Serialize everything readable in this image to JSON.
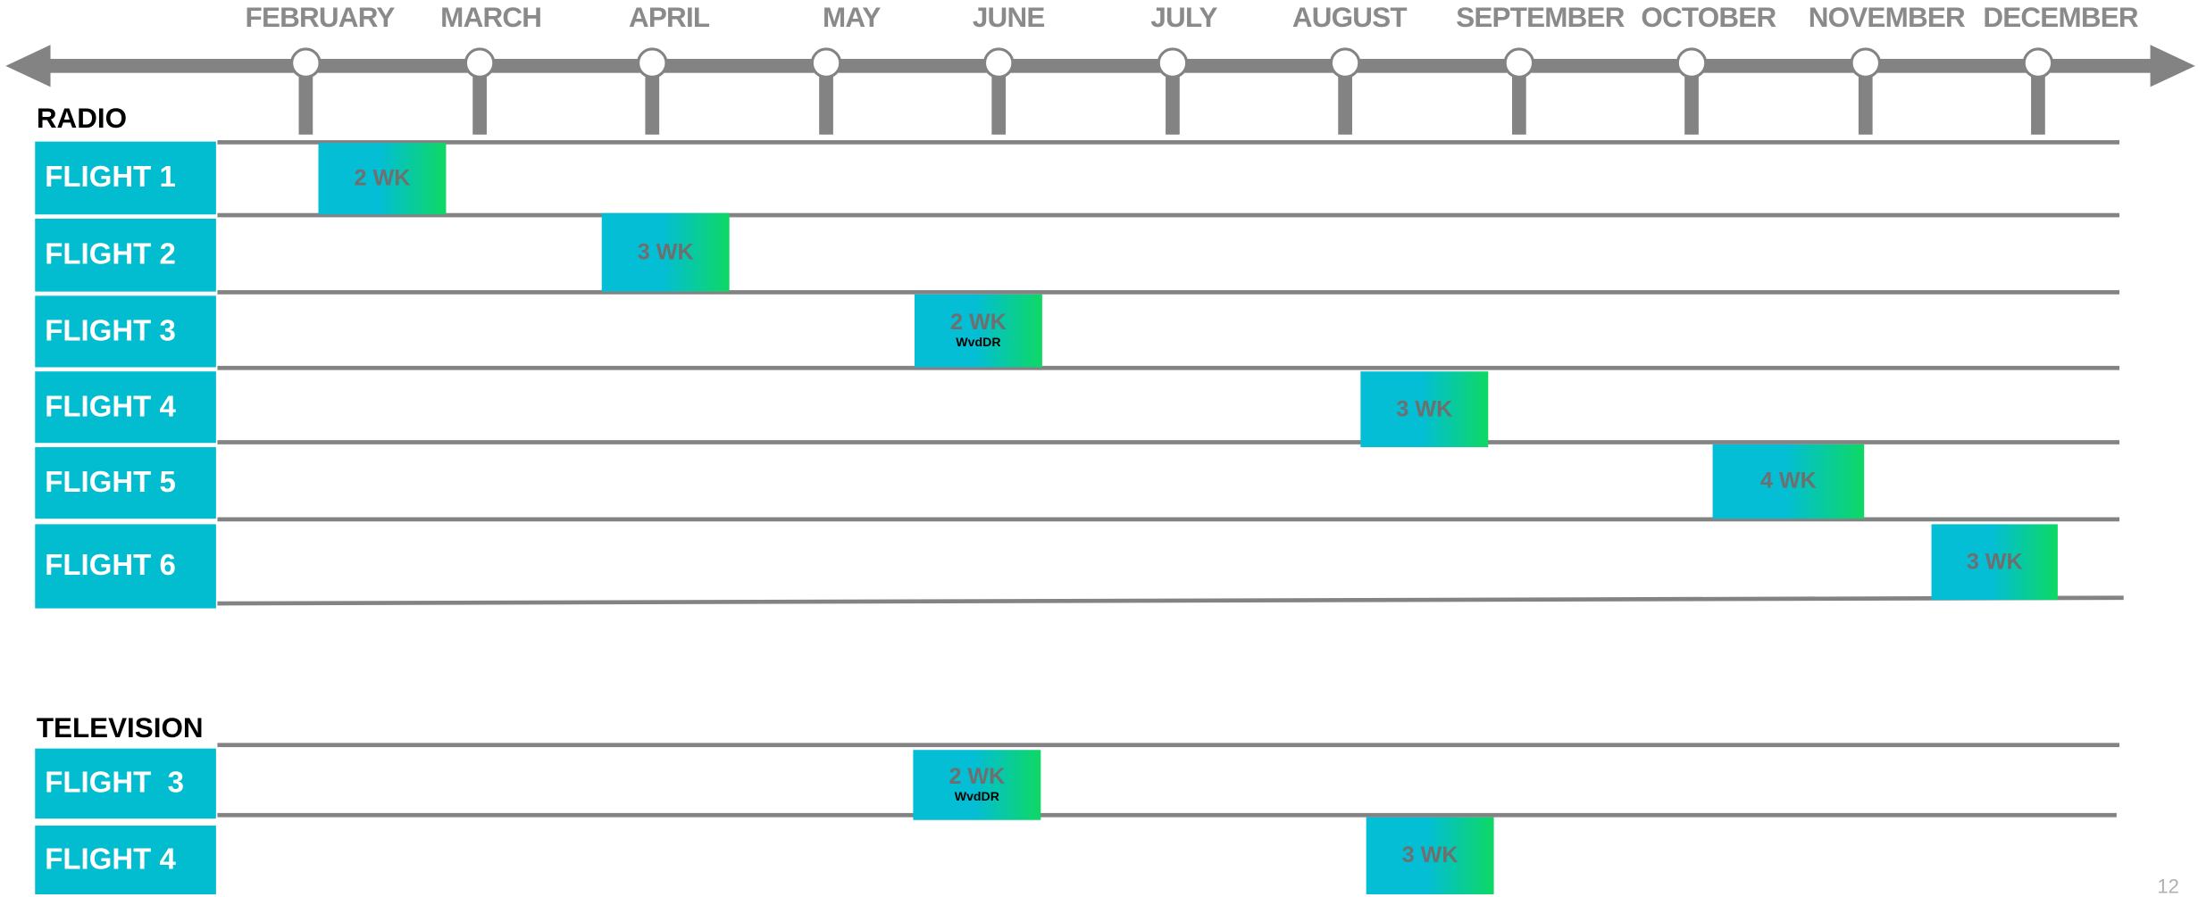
{
  "timeline": {
    "months": [
      "FEBRUARY",
      "MARCH",
      "APRIL",
      "MAY",
      "JUNE",
      "JULY",
      "AUGUST",
      "SEPTEMBER",
      "OCTOBER",
      "NOVEMBER",
      "DECEMBER"
    ]
  },
  "radio": {
    "title": "RADIO",
    "rows": [
      {
        "label": "FLIGHT 1",
        "duration": "2 WK",
        "note": ""
      },
      {
        "label": "FLIGHT 2",
        "duration": "3 WK",
        "note": ""
      },
      {
        "label": "FLIGHT 3",
        "duration": "2 WK",
        "note": "WvdDR"
      },
      {
        "label": "FLIGHT 4",
        "duration": "3 WK",
        "note": ""
      },
      {
        "label": "FLIGHT 5",
        "duration": "4 WK",
        "note": ""
      },
      {
        "label": "FLIGHT 6",
        "duration": "3 WK",
        "note": ""
      }
    ]
  },
  "television": {
    "title": "TELEVISION",
    "rows": [
      {
        "label": "FLIGHT  3",
        "duration": "2 WK",
        "note": "WvdDR"
      },
      {
        "label": "FLIGHT 4",
        "duration": "3 WK",
        "note": ""
      }
    ]
  },
  "page_number": "12",
  "colors": {
    "label_bg": "#02bcd0",
    "flight_start": "#03bed4",
    "flight_end": "#0ed864",
    "axis": "#838383"
  }
}
